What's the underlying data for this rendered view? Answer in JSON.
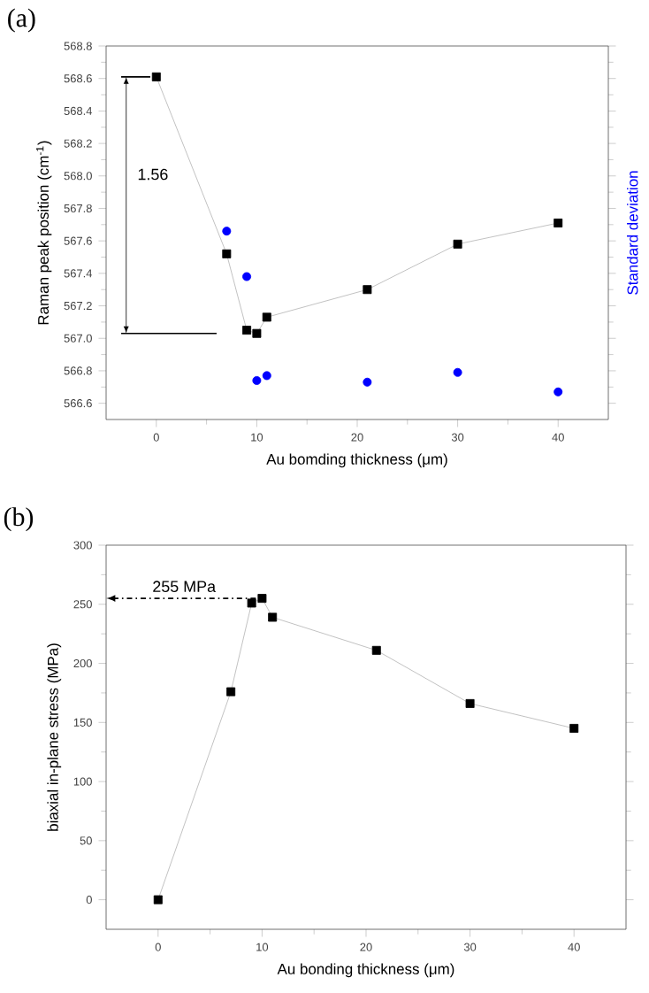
{
  "chart_data": [
    {
      "type": "line",
      "title": "(a)",
      "xlabel": "Au bomding thickness (μm)",
      "ylabel": "Raman peak position (cm$^{-1}$)",
      "y2label": "Standard deviation",
      "xlim": [
        -5,
        45
      ],
      "xticks": [
        0,
        10,
        20,
        30,
        40
      ],
      "ylim": [
        566.5,
        568.8
      ],
      "yticks": [
        566.6,
        566.8,
        {
          "value": 567,
          "label": "567.0"
        },
        567.2,
        567.4,
        567.6,
        567.8,
        {
          "value": 568,
          "label": "568.0"
        },
        568.2,
        568.4,
        568.6,
        568.8
      ],
      "grid": false,
      "series": [
        {
          "marker": "square",
          "color": "#000000",
          "x": [
            0,
            7,
            9,
            10,
            11,
            21,
            30,
            40
          ],
          "values": [
            568.61,
            567.52,
            567.05,
            567.03,
            567.13,
            567.3,
            567.58,
            567.71
          ]
        },
        {
          "type": "scatter",
          "marker": "circle",
          "color": "#0000ff",
          "x": [
            7,
            9,
            10,
            11,
            21,
            30,
            40
          ],
          "values": [
            567.66,
            567.38,
            566.74,
            566.77,
            566.73,
            566.79,
            566.67
          ]
        }
      ],
      "annotations": [
        "1.56"
      ]
    },
    {
      "type": "line",
      "title": "(b)",
      "xlabel": "Au bonding thickness (μm)",
      "ylabel": "biaxial in-plane stress (MPa)",
      "xlim": [
        -5,
        45
      ],
      "xticks": [
        0,
        10,
        20,
        30,
        40
      ],
      "ylim": [
        -25,
        300
      ],
      "yticks": [
        0,
        50,
        100,
        150,
        200,
        250,
        300
      ],
      "grid": false,
      "series": [
        {
          "marker": "square",
          "color": "#000000",
          "x": [
            0,
            7,
            9,
            10,
            11,
            21,
            30,
            40
          ],
          "values": [
            0,
            176,
            251,
            255,
            239,
            211,
            166,
            145
          ]
        }
      ],
      "annotations": [
        {
          "text": "255 MPa",
          "x": 10,
          "y": 255
        }
      ]
    }
  ]
}
